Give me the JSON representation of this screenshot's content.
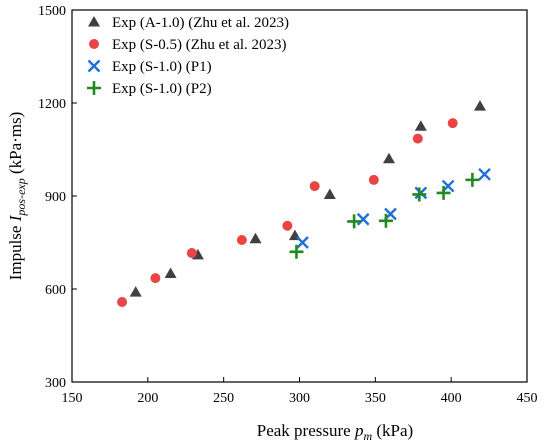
{
  "chart_data": {
    "type": "scatter",
    "xlabel": {
      "main": "Peak pressure ",
      "var": "p",
      "sub": "m",
      "unit": " (kPa)"
    },
    "ylabel": {
      "main": "Impulse ",
      "var": "I",
      "sub": "pos-exp",
      "unit": " (kPa·ms)"
    },
    "xlim": [
      150,
      450
    ],
    "ylim": [
      300,
      1500
    ],
    "xticks": [
      150,
      200,
      250,
      300,
      350,
      400,
      450
    ],
    "yticks": [
      300,
      600,
      900,
      1200,
      1500
    ],
    "legend_position": "top-left",
    "series": [
      {
        "name": "Exp (A-1.0) (Zhu et al. 2023)",
        "marker": "triangle",
        "color": "#404040",
        "points": [
          [
            192,
            590
          ],
          [
            215,
            650
          ],
          [
            233,
            710
          ],
          [
            271,
            762
          ],
          [
            297,
            772
          ],
          [
            320,
            905
          ],
          [
            359,
            1020
          ],
          [
            380,
            1125
          ],
          [
            419,
            1190
          ]
        ]
      },
      {
        "name": "Exp (S-0.5) (Zhu et al. 2023)",
        "marker": "circle",
        "color": "#e84545",
        "points": [
          [
            183,
            558
          ],
          [
            205,
            635
          ],
          [
            229,
            716
          ],
          [
            262,
            758
          ],
          [
            292,
            804
          ],
          [
            310,
            932
          ],
          [
            349,
            952
          ],
          [
            378,
            1085
          ],
          [
            401,
            1135
          ]
        ]
      },
      {
        "name": "Exp (S-1.0) (P1)",
        "marker": "x",
        "color": "#1f6fd6",
        "points": [
          [
            302,
            750
          ],
          [
            342,
            825
          ],
          [
            360,
            842
          ],
          [
            380,
            910
          ],
          [
            398,
            932
          ],
          [
            422,
            970
          ]
        ]
      },
      {
        "name": "Exp (S-1.0) (P2)",
        "marker": "plus",
        "color": "#1f8a1f",
        "points": [
          [
            298,
            720
          ],
          [
            336,
            818
          ],
          [
            357,
            820
          ],
          [
            379,
            905
          ],
          [
            395,
            910
          ],
          [
            414,
            952
          ]
        ]
      }
    ]
  }
}
